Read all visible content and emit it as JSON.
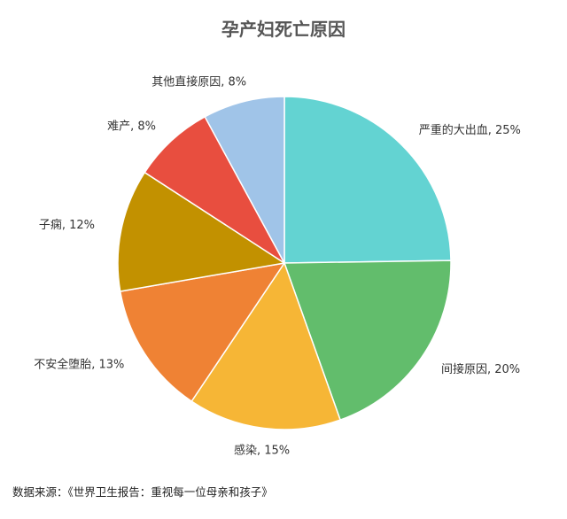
{
  "chart_data": {
    "type": "pie",
    "title": "孕产妇死亡原因",
    "slices": [
      {
        "label": "严重的大出血, 25%",
        "value": 25,
        "color": "#63d3d2"
      },
      {
        "label": "间接原因, 20%",
        "value": 20,
        "color": "#62bd6c"
      },
      {
        "label": "感染, 15%",
        "value": 15,
        "color": "#f6b636"
      },
      {
        "label": "不安全堕胎, 13%",
        "value": 13,
        "color": "#ef8234"
      },
      {
        "label": "子痫, 12%",
        "value": 12,
        "color": "#c29100"
      },
      {
        "label": "难产, 8%",
        "value": 8,
        "color": "#e84e3f"
      },
      {
        "label": "其他直接原因, 8%",
        "value": 8,
        "color": "#a0c4e8"
      }
    ],
    "start_angle_deg": 0,
    "direction": "clockwise"
  },
  "source": "数据来源：《世界卫生报告：重视每一位母亲和孩子》"
}
